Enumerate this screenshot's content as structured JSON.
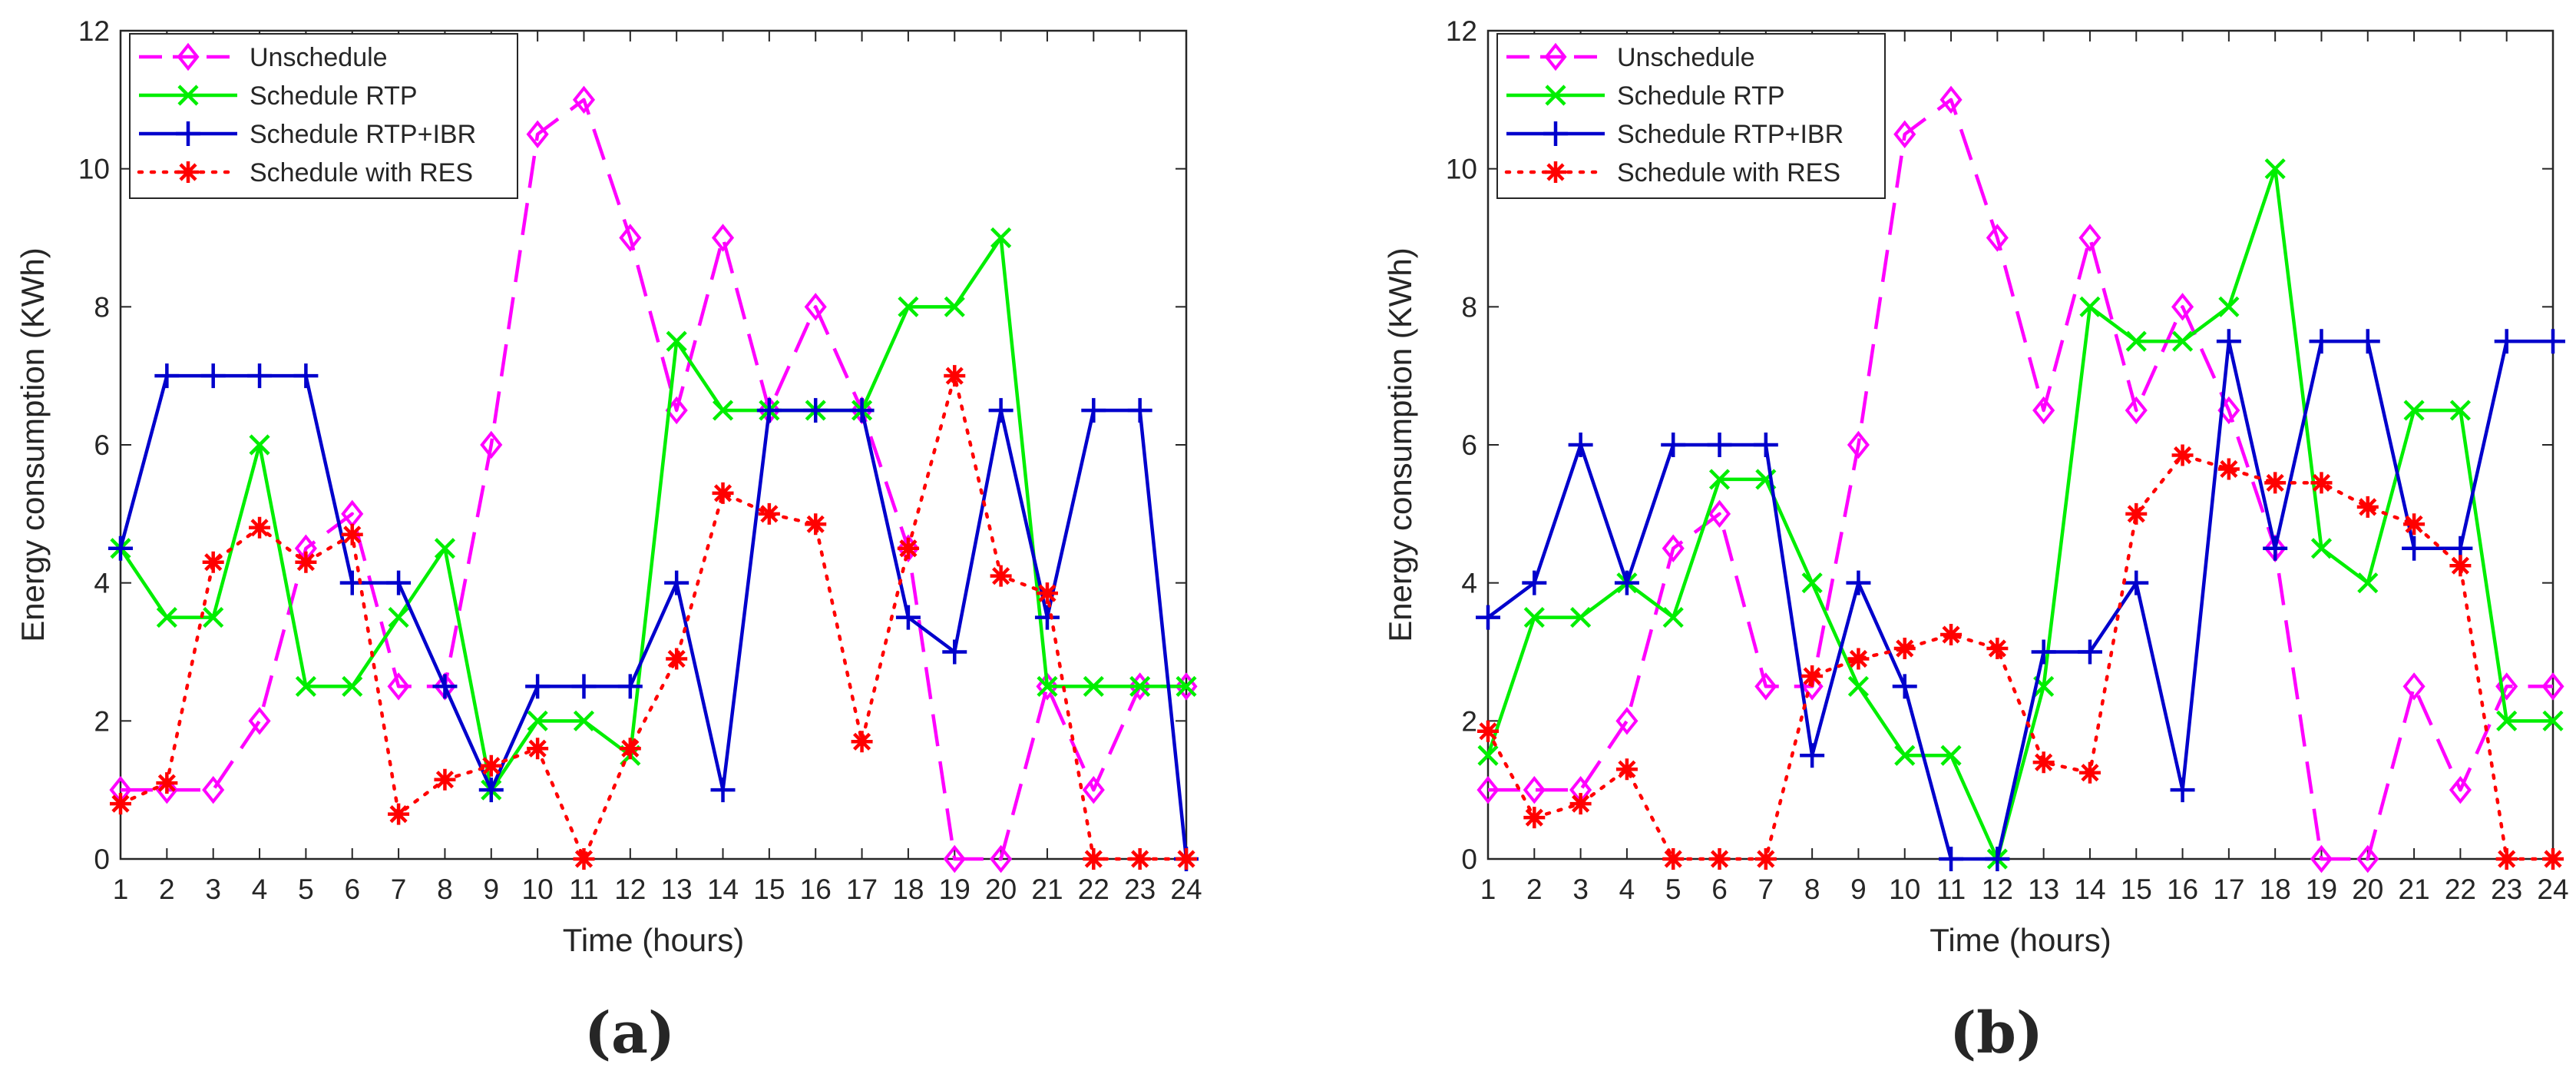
{
  "figure": {
    "colors": {
      "axis": "#262626",
      "background": "#ffffff"
    }
  },
  "chart_data": [
    {
      "type": "line",
      "panel_label": "a",
      "xlabel": "Time (hours)",
      "ylabel": "Energy consumption (KWh)",
      "x": [
        1,
        2,
        3,
        4,
        5,
        6,
        7,
        8,
        9,
        10,
        11,
        12,
        13,
        14,
        15,
        16,
        17,
        18,
        19,
        20,
        21,
        22,
        23,
        24
      ],
      "xlim": [
        1,
        24
      ],
      "ylim": [
        0,
        12
      ],
      "yticks": [
        0,
        2,
        4,
        6,
        8,
        10,
        12
      ],
      "grid": false,
      "legend_position": "top-left",
      "series": [
        {
          "name": "Unschedule",
          "color": "#ff00ff",
          "dash": "dashed",
          "marker": "diamond",
          "values": [
            1,
            1,
            1,
            2,
            4.5,
            5,
            2.5,
            2.5,
            6,
            10.5,
            11,
            9,
            6.5,
            9,
            6.5,
            8,
            6.5,
            4.5,
            0,
            0,
            2.5,
            1,
            2.5,
            2.5
          ]
        },
        {
          "name": "Schedule RTP",
          "color": "#00ee00",
          "dash": "solid",
          "marker": "x",
          "values": [
            4.5,
            3.5,
            3.5,
            6,
            2.5,
            2.5,
            3.5,
            4.5,
            1,
            2,
            2,
            1.5,
            7.5,
            6.5,
            6.5,
            6.5,
            6.5,
            8,
            8,
            9,
            2.5,
            2.5,
            2.5,
            2.5
          ]
        },
        {
          "name": "Schedule RTP+IBR",
          "color": "#0000cc",
          "dash": "solid",
          "marker": "plus",
          "values": [
            4.5,
            7,
            7,
            7,
            7,
            4,
            4,
            2.5,
            1,
            2.5,
            2.5,
            2.5,
            4,
            1,
            6.5,
            6.5,
            6.5,
            3.5,
            3,
            6.5,
            3.5,
            6.5,
            6.5,
            0
          ]
        },
        {
          "name": "Schedule with RES",
          "color": "#ff0000",
          "dash": "dotted",
          "marker": "asterisk",
          "values": [
            0.8,
            1.1,
            4.3,
            4.8,
            4.3,
            4.7,
            0.65,
            1.15,
            1.35,
            1.6,
            0,
            1.6,
            2.9,
            5.3,
            5,
            4.85,
            1.7,
            4.5,
            7,
            4.1,
            3.85,
            0,
            0,
            0
          ]
        }
      ]
    },
    {
      "type": "line",
      "panel_label": "b",
      "xlabel": "Time (hours)",
      "ylabel": "Energy consumption (KWh)",
      "x": [
        1,
        2,
        3,
        4,
        5,
        6,
        7,
        8,
        9,
        10,
        11,
        12,
        13,
        14,
        15,
        16,
        17,
        18,
        19,
        20,
        21,
        22,
        23,
        24
      ],
      "xlim": [
        1,
        24
      ],
      "ylim": [
        0,
        12
      ],
      "yticks": [
        0,
        2,
        4,
        6,
        8,
        10,
        12
      ],
      "grid": false,
      "legend_position": "top-left",
      "series": [
        {
          "name": "Unschedule",
          "color": "#ff00ff",
          "dash": "dashed",
          "marker": "diamond",
          "values": [
            1,
            1,
            1,
            2,
            4.5,
            5,
            2.5,
            2.5,
            6,
            10.5,
            11,
            9,
            6.5,
            9,
            6.5,
            8,
            6.5,
            4.5,
            0,
            0,
            2.5,
            1,
            2.5,
            2.5
          ]
        },
        {
          "name": "Schedule RTP",
          "color": "#00ee00",
          "dash": "solid",
          "marker": "x",
          "values": [
            1.5,
            3.5,
            3.5,
            4,
            3.5,
            5.5,
            5.5,
            4,
            2.5,
            1.5,
            1.5,
            0,
            2.5,
            8,
            7.5,
            7.5,
            8,
            10,
            4.5,
            4,
            6.5,
            6.5,
            2,
            2
          ]
        },
        {
          "name": "Schedule RTP+IBR",
          "color": "#0000cc",
          "dash": "solid",
          "marker": "plus",
          "values": [
            3.5,
            4,
            6,
            4,
            6,
            6,
            6,
            1.5,
            4,
            2.5,
            0,
            0,
            3,
            3,
            4,
            1,
            7.5,
            4.5,
            7.5,
            7.5,
            4.5,
            4.5,
            7.5,
            7.5
          ]
        },
        {
          "name": "Schedule with RES",
          "color": "#ff0000",
          "dash": "dotted",
          "marker": "asterisk",
          "values": [
            1.85,
            0.6,
            0.8,
            1.3,
            0,
            0,
            0,
            2.65,
            2.9,
            3.05,
            3.25,
            3.05,
            1.4,
            1.25,
            5,
            5.85,
            5.65,
            5.45,
            5.45,
            5.1,
            4.85,
            4.25,
            0,
            0
          ]
        }
      ]
    }
  ]
}
